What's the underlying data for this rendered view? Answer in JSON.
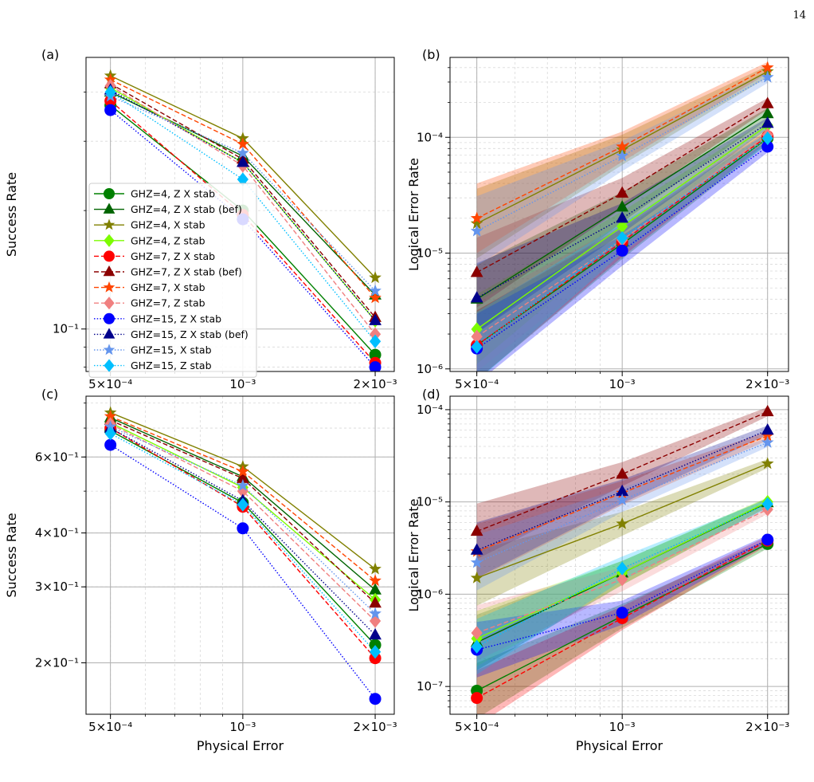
{
  "page_number": "14",
  "x_axis": {
    "type": "log",
    "range": [
      0.00044,
      0.00221
    ],
    "ticks": [
      {
        "v": 0.0005,
        "label": "5×10⁻⁴"
      },
      {
        "v": 0.001,
        "label": "10⁻³"
      },
      {
        "v": 0.002,
        "label": "2×10⁻³"
      }
    ],
    "label": "Physical Error"
  },
  "x_values": [
    0.0005,
    0.001,
    0.002
  ],
  "legend_entries": [
    {
      "name": "GHZ=4, Z X stab",
      "color": "#008000",
      "marker": "circle",
      "line": "solid"
    },
    {
      "name": "GHZ=4, Z X stab (bef)",
      "color": "#006400",
      "marker": "triangle",
      "line": "solid"
    },
    {
      "name": "GHZ=4, X stab",
      "color": "#808000",
      "marker": "star",
      "line": "solid"
    },
    {
      "name": "GHZ=4, Z stab",
      "color": "#7CFC00",
      "marker": "diamond",
      "line": "solid"
    },
    {
      "name": "GHZ=7, Z X stab",
      "color": "#FF0000",
      "marker": "circle",
      "line": "dashed"
    },
    {
      "name": "GHZ=7, Z X stab (bef)",
      "color": "#8B0000",
      "marker": "triangle",
      "line": "dashed"
    },
    {
      "name": "GHZ=7, X stab",
      "color": "#FF4500",
      "marker": "star",
      "line": "dashed"
    },
    {
      "name": "GHZ=7, Z stab",
      "color": "#F08080",
      "marker": "diamond",
      "line": "dashed"
    },
    {
      "name": "GHZ=15, Z X stab",
      "color": "#0000FF",
      "marker": "circle",
      "line": "dotted"
    },
    {
      "name": "GHZ=15, Z X stab (bef)",
      "color": "#00008B",
      "marker": "triangle",
      "line": "dotted"
    },
    {
      "name": "GHZ=15, X stab",
      "color": "#6495ED",
      "marker": "star",
      "line": "dotted"
    },
    {
      "name": "GHZ=15, Z stab",
      "color": "#00BFFF",
      "marker": "diamond",
      "line": "dotted"
    }
  ],
  "chart_data": [
    {
      "type": "line",
      "panel_label": "(a)",
      "ylabel": "Success Rate",
      "yscale": "log",
      "ylim": [
        0.078,
        0.49
      ],
      "yticks": [
        {
          "v": 0.1,
          "label": "10⁻¹"
        }
      ],
      "band": false,
      "series": [
        {
          "values": [
            0.37,
            0.2,
            0.086
          ]
        },
        {
          "values": [
            0.4,
            0.275,
            0.122
          ]
        },
        {
          "values": [
            0.44,
            0.305,
            0.135
          ]
        },
        {
          "values": [
            0.41,
            0.265,
            0.105
          ]
        },
        {
          "values": [
            0.38,
            0.195,
            0.082
          ]
        },
        {
          "values": [
            0.42,
            0.27,
            0.107
          ]
        },
        {
          "values": [
            0.43,
            0.295,
            0.12
          ]
        },
        {
          "values": [
            0.415,
            0.26,
            0.097
          ]
        },
        {
          "values": [
            0.36,
            0.19,
            0.08
          ]
        },
        {
          "values": [
            0.405,
            0.265,
            0.105
          ]
        },
        {
          "values": [
            0.39,
            0.28,
            0.125
          ]
        },
        {
          "values": [
            0.4,
            0.24,
            0.093
          ]
        }
      ]
    },
    {
      "type": "line",
      "panel_label": "(b)",
      "ylabel": "Logical Error Rate",
      "yscale": "log",
      "ylim": [
        9.5e-07,
        0.00049
      ],
      "yticks": [
        {
          "v": 1e-06,
          "label": "10⁻⁶"
        },
        {
          "v": 1e-05,
          "label": "10⁻⁵"
        },
        {
          "v": 0.0001,
          "label": "10⁻⁴"
        }
      ],
      "band": true,
      "series": [
        {
          "values": [
            1.6e-06,
            1.2e-05,
            9.8e-05
          ]
        },
        {
          "values": [
            4e-06,
            2.5e-05,
            0.00016
          ]
        },
        {
          "values": [
            1.8e-05,
            7.8e-05,
            0.00037
          ]
        },
        {
          "values": [
            2.2e-06,
            1.7e-05,
            0.000127
          ]
        },
        {
          "values": [
            1.6e-06,
            1.25e-05,
            0.000102
          ]
        },
        {
          "values": [
            6.8e-06,
            3.3e-05,
            0.000195
          ]
        },
        {
          "values": [
            2e-05,
            8.3e-05,
            0.0004
          ]
        },
        {
          "values": [
            1.9e-06,
            1.3e-05,
            0.000105
          ]
        },
        {
          "values": [
            1.5e-06,
            1.05e-05,
            8.3e-05
          ]
        },
        {
          "values": [
            4.1e-06,
            2e-05,
            0.000132
          ]
        },
        {
          "values": [
            1.55e-05,
            6.9e-05,
            0.00033
          ]
        },
        {
          "values": [
            1.55e-06,
            1.35e-05,
            9.8e-05
          ]
        }
      ]
    },
    {
      "type": "line",
      "panel_label": "(c)",
      "ylabel": "Success Rate",
      "yscale": "log",
      "ylim": [
        0.152,
        0.83
      ],
      "yticks": [
        {
          "v": 0.2,
          "label": "2×10⁻¹"
        },
        {
          "v": 0.3,
          "label": "3×10⁻¹"
        },
        {
          "v": 0.4,
          "label": "4×10⁻¹"
        },
        {
          "v": 0.6,
          "label": "6×10⁻¹"
        }
      ],
      "band": false,
      "series": [
        {
          "values": [
            0.69,
            0.47,
            0.22
          ]
        },
        {
          "values": [
            0.74,
            0.54,
            0.295
          ]
        },
        {
          "values": [
            0.76,
            0.57,
            0.33
          ]
        },
        {
          "values": [
            0.72,
            0.51,
            0.28
          ]
        },
        {
          "values": [
            0.7,
            0.46,
            0.205
          ]
        },
        {
          "values": [
            0.73,
            0.535,
            0.275
          ]
        },
        {
          "values": [
            0.745,
            0.555,
            0.31
          ]
        },
        {
          "values": [
            0.715,
            0.5,
            0.25
          ]
        },
        {
          "values": [
            0.64,
            0.41,
            0.165
          ]
        },
        {
          "values": [
            0.7,
            0.475,
            0.232
          ]
        },
        {
          "values": [
            0.705,
            0.515,
            0.26
          ]
        },
        {
          "values": [
            0.68,
            0.465,
            0.212
          ]
        }
      ]
    },
    {
      "type": "line",
      "panel_label": "(d)",
      "ylabel": "Logical Error Rate",
      "yscale": "log",
      "ylim": [
        5e-08,
        0.00014
      ],
      "yticks": [
        {
          "v": 1e-07,
          "label": "10⁻⁷"
        },
        {
          "v": 1e-06,
          "label": "10⁻⁶"
        },
        {
          "v": 1e-05,
          "label": "10⁻⁵"
        },
        {
          "v": 0.0001,
          "label": "10⁻⁴"
        }
      ],
      "band": true,
      "series": [
        {
          "values": [
            9e-08,
            5.8e-07,
            3.5e-06
          ]
        },
        {
          "values": [
            3e-07,
            1.7e-06,
            9.8e-06
          ]
        },
        {
          "values": [
            1.5e-06,
            5.8e-06,
            2.6e-05
          ]
        },
        {
          "values": [
            3.3e-07,
            1.7e-06,
            1e-05
          ]
        },
        {
          "values": [
            7.5e-08,
            5.5e-07,
            3.8e-06
          ]
        },
        {
          "values": [
            4.8e-06,
            2e-05,
            9.5e-05
          ]
        },
        {
          "values": [
            2.9e-06,
            1.25e-05,
            5.2e-05
          ]
        },
        {
          "values": [
            3.8e-07,
            1.45e-06,
            8.3e-06
          ]
        },
        {
          "values": [
            2.5e-07,
            6.3e-07,
            3.9e-06
          ]
        },
        {
          "values": [
            3e-06,
            1.3e-05,
            6e-05
          ]
        },
        {
          "values": [
            2.2e-06,
            1.05e-05,
            4.4e-05
          ]
        },
        {
          "values": [
            2.7e-07,
            1.9e-06,
            9.5e-06
          ]
        }
      ]
    }
  ]
}
